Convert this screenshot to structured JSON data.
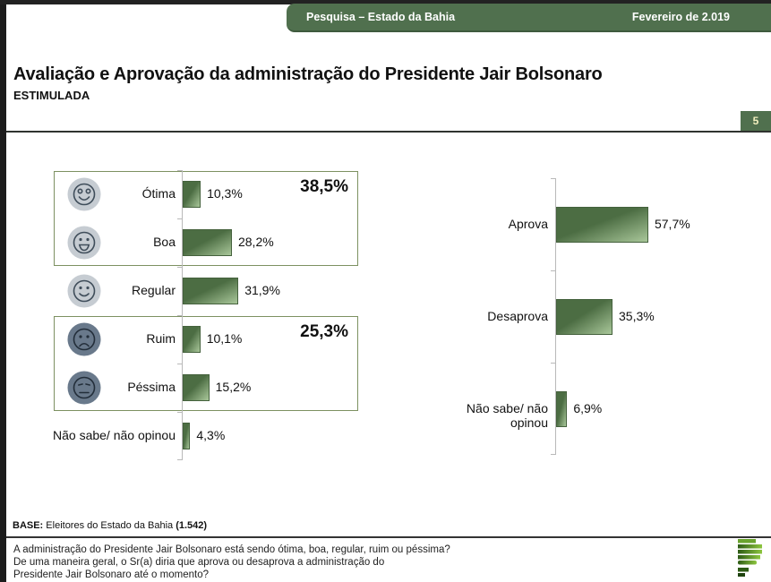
{
  "header": {
    "left_title": "Pesquisa – Estado da Bahia",
    "right_title": "Fevereiro de 2.019"
  },
  "title": "Avaliação e Aprovação da administração do Presidente Jair Bolsonaro",
  "subtitle": "ESTIMULADA",
  "page_number": "5",
  "colors": {
    "header_green": "#50704e",
    "bar_dark": "#4c6d43",
    "bar_light": "#a9c79a",
    "group_box_border": "#7d9161",
    "emoji_light_bg": "#c6ccd2",
    "emoji_dark_bg": "#69798b"
  },
  "chart_data": [
    {
      "type": "bar",
      "orientation": "horizontal",
      "title": "",
      "categories": [
        "Ótima",
        "Boa",
        "Regular",
        "Ruim",
        "Péssima",
        "Não sabe/ não opinou"
      ],
      "values": [
        10.3,
        28.2,
        31.9,
        10.1,
        15.2,
        4.3
      ],
      "value_labels": [
        "10,3%",
        "28,2%",
        "31,9%",
        "10,1%",
        "15,2%",
        "4,3%"
      ],
      "icons": [
        "very-happy-face",
        "happy-face",
        "smile-face",
        "sad-face",
        "annoyed-face",
        null
      ],
      "groups": [
        {
          "label": "38,5%",
          "first_row": 0,
          "last_row": 1
        },
        {
          "label": "25,3%",
          "first_row": 3,
          "last_row": 4
        }
      ],
      "xlim": [
        0,
        100
      ],
      "grid": false,
      "legend": false
    },
    {
      "type": "bar",
      "orientation": "horizontal",
      "title": "",
      "categories": [
        "Aprova",
        "Desaprova",
        "Não sabe/ não opinou"
      ],
      "values": [
        57.7,
        35.3,
        6.9
      ],
      "value_labels": [
        "57,7%",
        "35,3%",
        "6,9%"
      ],
      "xlim": [
        0,
        100
      ],
      "grid": false,
      "legend": false
    }
  ],
  "footer": {
    "base_label": "BASE:",
    "base_text": " Eleitores do Estado da Bahia ",
    "base_bold": "(1.542)",
    "question_lines": [
      "A administração do Presidente Jair Bolsonaro está sendo ótima, boa, regular, ruim ou péssima?",
      "De uma maneira geral, o Sr(a) diria que aprova ou desaprova a administração do",
      "Presidente Jair Bolsonaro até o momento?"
    ]
  }
}
